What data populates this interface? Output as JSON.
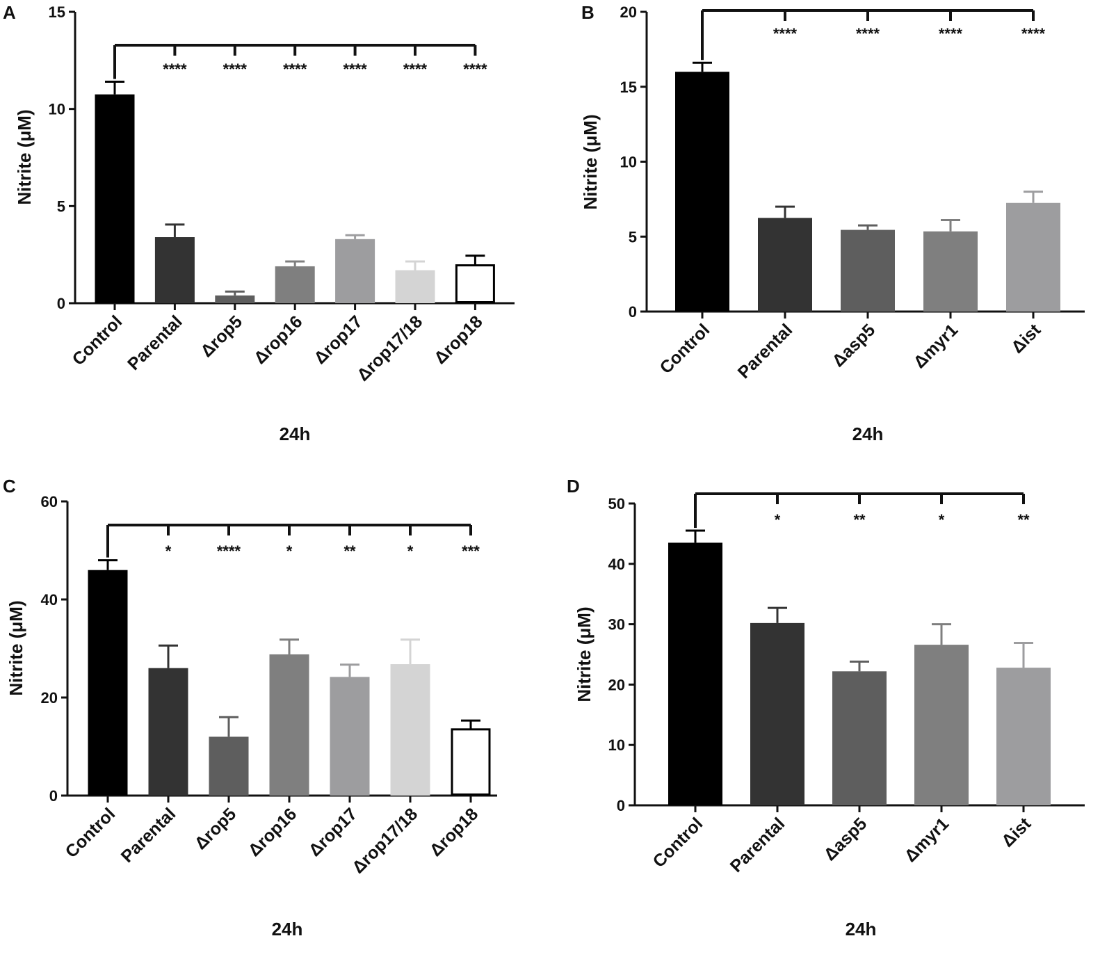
{
  "colors": {
    "axis": "#111111",
    "bars": [
      "#000000",
      "#333333",
      "#5e5e5e",
      "#7f7f7f",
      "#9d9d9f",
      "#d4d4d4",
      "#ffffff"
    ],
    "bars5": [
      "#000000",
      "#333333",
      "#5e5e5e",
      "#7f7f7f",
      "#9d9d9f"
    ]
  },
  "chart_data": [
    {
      "panel": "A",
      "type": "bar",
      "ylabel": "Nitrite (μM)",
      "xlabel": "24h",
      "ylim": [
        0,
        15
      ],
      "yticks": [
        0,
        5,
        10,
        15
      ],
      "categories": [
        "Control",
        "Parental",
        "Δrop5",
        "Δrop16",
        "Δrop17",
        "Δrop17/18",
        "Δrop18"
      ],
      "values": [
        10.75,
        3.4,
        0.4,
        1.9,
        3.3,
        1.7,
        1.95
      ],
      "errors": [
        0.65,
        0.65,
        0.2,
        0.25,
        0.2,
        0.45,
        0.5
      ],
      "significance": [
        "",
        "****",
        "****",
        "****",
        "****",
        "****",
        "****"
      ]
    },
    {
      "panel": "B",
      "type": "bar",
      "ylabel": "Nitrite (μM)",
      "xlabel": "24h",
      "ylim": [
        0,
        20
      ],
      "yticks": [
        0,
        5,
        10,
        15,
        20
      ],
      "categories": [
        "Control",
        "Parental",
        "Δasp5",
        "Δmyr1",
        "Δist"
      ],
      "values": [
        16.0,
        6.25,
        5.45,
        5.35,
        7.25
      ],
      "errors": [
        0.6,
        0.75,
        0.3,
        0.75,
        0.75
      ],
      "significance": [
        "",
        "****",
        "****",
        "****",
        "****"
      ]
    },
    {
      "panel": "C",
      "type": "bar",
      "ylabel": "Nitrite (μM)",
      "xlabel": "24h",
      "ylim": [
        0,
        60
      ],
      "yticks": [
        0,
        20,
        40,
        60
      ],
      "categories": [
        "Control",
        "Parental",
        "Δrop5",
        "Δrop16",
        "Δrop17",
        "Δrop17/18",
        "Δrop18"
      ],
      "values": [
        46,
        26,
        12,
        28.8,
        24.2,
        26.8,
        13.5
      ],
      "errors": [
        2,
        4.6,
        4,
        3,
        2.5,
        5,
        1.8
      ],
      "significance": [
        "",
        "*",
        "****",
        "*",
        "**",
        "*",
        "***"
      ]
    },
    {
      "panel": "D",
      "type": "bar",
      "ylabel": "Nitrite (μM)",
      "xlabel": "24h",
      "ylim": [
        0,
        50
      ],
      "yticks": [
        0,
        10,
        20,
        30,
        40,
        50
      ],
      "categories": [
        "Control",
        "Parental",
        "Δasp5",
        "Δmyr1",
        "Δist"
      ],
      "values": [
        43.5,
        30.2,
        22.2,
        26.6,
        22.8
      ],
      "errors": [
        2,
        2.5,
        1.6,
        3.4,
        4.1
      ],
      "significance": [
        "",
        "*",
        "**",
        "*",
        "**"
      ]
    }
  ]
}
